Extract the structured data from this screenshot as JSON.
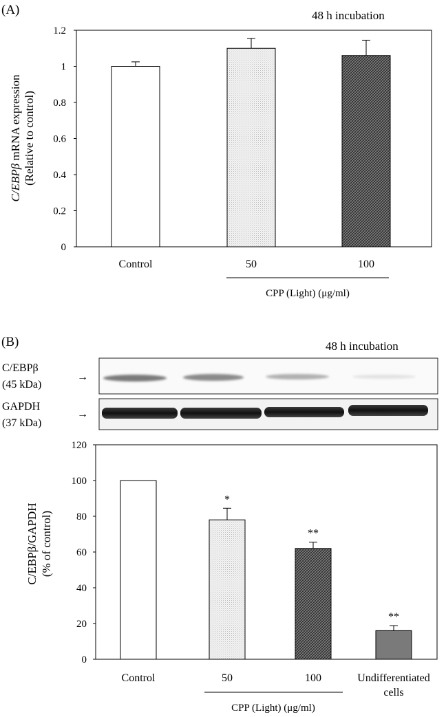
{
  "panel_a": {
    "label": "(A)",
    "note": "48 h incubation",
    "group_label": "CPP (Light) (μg/ml)",
    "ylabel_gene": "C/EBPβ",
    "ylabel_rest": " mRNA expression",
    "ylabel_line2": "(Relative to control)"
  },
  "panel_b": {
    "label": "(B)",
    "note": "48 h incubation",
    "group_label": "CPP (Light) (μg/ml)",
    "ylabel_line1": "C/EBPβ/GAPDH",
    "ylabel_line2": "(% of control)",
    "blot_rows": [
      {
        "name": "C/EBPβ",
        "kda": "(45 kDa)",
        "arrow": "→"
      },
      {
        "name": "GAPDH",
        "kda": "(37 kDa)",
        "arrow": "→"
      }
    ]
  },
  "colors": {
    "control": "#ffffff",
    "light50": "#e6e6e6",
    "dose100": "#555555",
    "undiff": "#7a7a7a"
  },
  "chart_data": [
    {
      "type": "bar",
      "categories": [
        "Control",
        "50",
        "100"
      ],
      "values": [
        1.0,
        1.1,
        1.06
      ],
      "errors": [
        0.025,
        0.055,
        0.085
      ],
      "annotations": [
        "",
        "",
        ""
      ],
      "ylim": [
        0,
        1.2
      ],
      "yticks": [
        0,
        0.2,
        0.4,
        0.6,
        0.8,
        1,
        1.2
      ],
      "ytick_labels": [
        "0",
        "0.2",
        "0.4",
        "0.6",
        "0.8",
        "1",
        "1.2"
      ],
      "grid": false
    },
    {
      "type": "bar",
      "categories": [
        "Control",
        "50",
        "100",
        "Undifferentiated cells"
      ],
      "category_lines": [
        [
          "Control"
        ],
        [
          "50"
        ],
        [
          "100"
        ],
        [
          "Undifferentiated",
          "cells"
        ]
      ],
      "values": [
        100,
        78,
        62,
        16
      ],
      "errors": [
        0,
        6.5,
        3.5,
        2.8
      ],
      "annotations": [
        "",
        "*",
        "**",
        "**"
      ],
      "ylim": [
        0,
        120
      ],
      "yticks": [
        0,
        20,
        40,
        60,
        80,
        100,
        120
      ],
      "ytick_labels": [
        "0",
        "20",
        "40",
        "60",
        "80",
        "100",
        "120"
      ],
      "grid": false
    }
  ]
}
